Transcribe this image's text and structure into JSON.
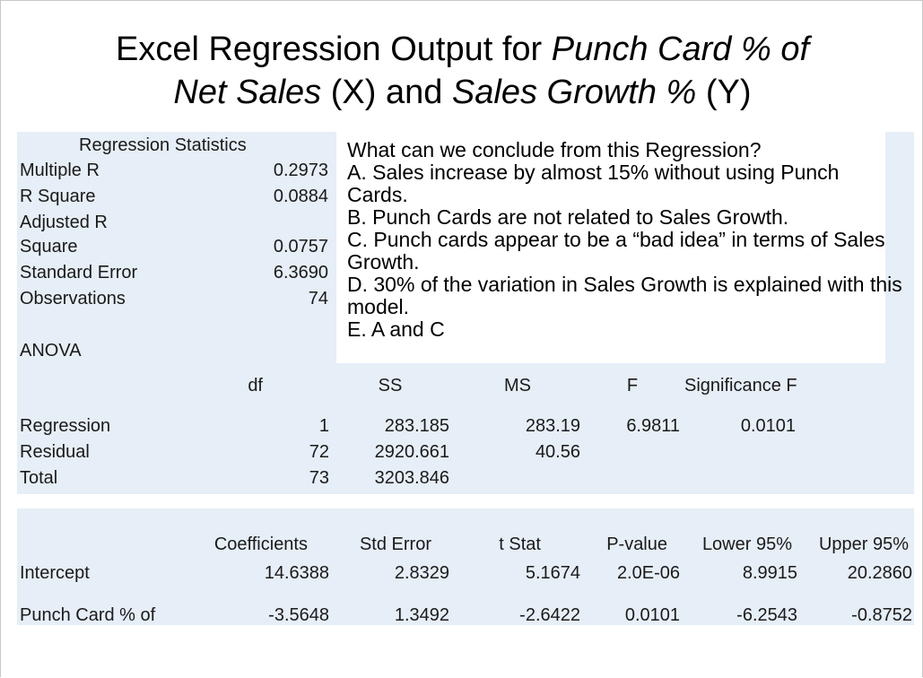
{
  "title": {
    "line1_plain": "Excel Regression Output for ",
    "line1_italic": "Punch Card % of",
    "line2_italic1": "Net Sales",
    "line2_plain1": " (X) and ",
    "line2_italic2": "Sales Growth %",
    "line2_plain2": " (Y)"
  },
  "regression_statistics": {
    "header": "Regression Statistics",
    "rows": [
      {
        "label": "Multiple R",
        "value": "0.2973"
      },
      {
        "label": "R Square",
        "value": "0.0884"
      },
      {
        "label": "Adjusted R",
        "label2": "Square",
        "value": "0.0757"
      },
      {
        "label": "Standard Error",
        "value": "6.3690"
      },
      {
        "label": "Observations",
        "value": "74"
      }
    ]
  },
  "question": {
    "prompt": "What can we conclude from this Regression?",
    "options": [
      "A. Sales increase by almost 15% without using Punch Cards.",
      "B. Punch Cards are not related to Sales Growth.",
      "C. Punch cards appear to be a “bad idea” in terms of Sales Growth.",
      "D. 30% of the variation in Sales Growth is explained with this model.",
      "E. A and C"
    ]
  },
  "anova": {
    "label": "ANOVA",
    "headers": [
      "df",
      "SS",
      "MS",
      "F",
      "Significance F"
    ],
    "rows": [
      {
        "label": "Regression",
        "df": "1",
        "ss": "283.185",
        "ms": "283.19",
        "f": "6.9811",
        "sig": "0.0101"
      },
      {
        "label": "Residual",
        "df": "72",
        "ss": "2920.661",
        "ms": "40.56"
      },
      {
        "label": "Total",
        "df": "73",
        "ss": "3203.846"
      }
    ]
  },
  "coefficients": {
    "headers": [
      "Coefficients",
      "Std Error",
      "t Stat",
      "P-value",
      "Lower 95%",
      "Upper 95%"
    ],
    "rows": [
      {
        "label": "Intercept",
        "coef": "14.6388",
        "se": "2.8329",
        "t": "5.1674",
        "p": "2.0E-06",
        "lo": "8.9915",
        "hi": "20.2860"
      },
      {
        "label": "Punch Card % of",
        "coef": "-3.5648",
        "se": "1.3492",
        "t": "-2.6422",
        "p": "0.0101",
        "lo": "-6.2543",
        "hi": "-0.8752"
      }
    ]
  }
}
